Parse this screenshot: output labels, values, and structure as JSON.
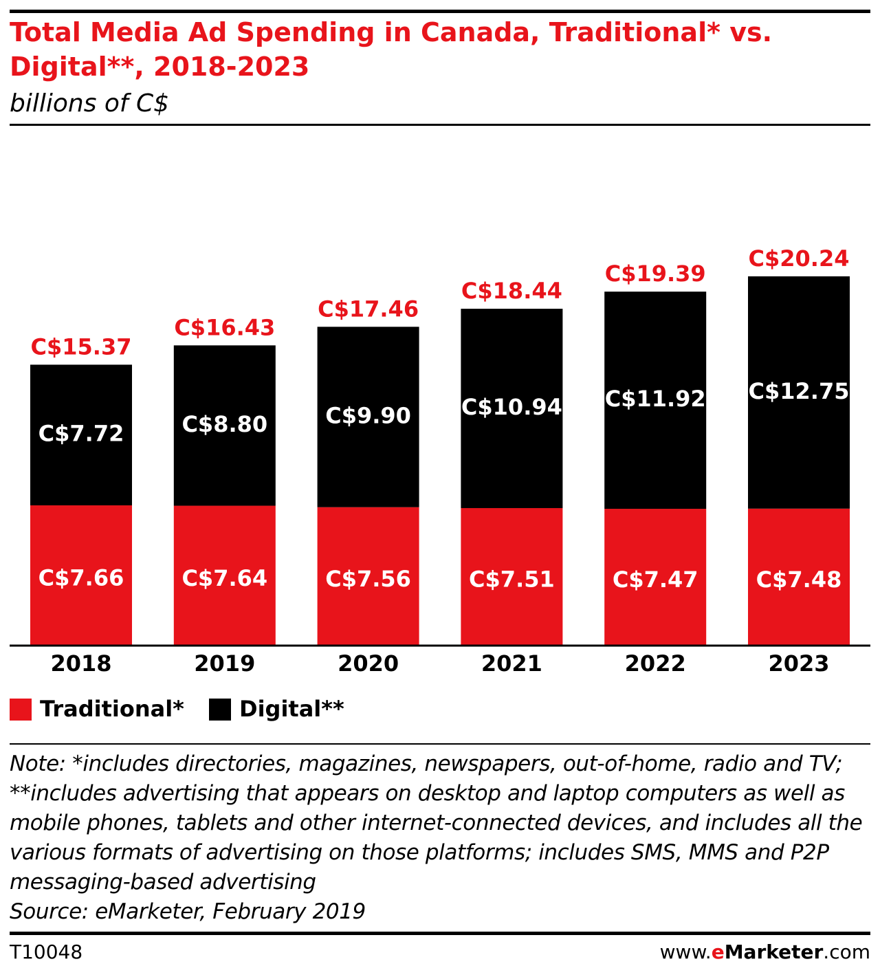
{
  "header": {
    "title": "Total Media Ad Spending in Canada, Traditional* vs. Digital**, 2018-2023",
    "subtitle": "billions of C$"
  },
  "colors": {
    "traditional": "#e8141b",
    "digital": "#000000",
    "title": "#e8141b",
    "total_label": "#e8141b"
  },
  "chart_data": {
    "type": "bar",
    "stacked": true,
    "categories": [
      "2018",
      "2019",
      "2020",
      "2021",
      "2022",
      "2023"
    ],
    "series": [
      {
        "name": "Traditional*",
        "values": [
          7.66,
          7.64,
          7.56,
          7.51,
          7.47,
          7.48
        ],
        "labels": [
          "C$7.66",
          "C$7.64",
          "C$7.56",
          "C$7.51",
          "C$7.47",
          "C$7.48"
        ]
      },
      {
        "name": "Digital**",
        "values": [
          7.72,
          8.8,
          9.9,
          10.94,
          11.92,
          12.75
        ],
        "labels": [
          "C$7.72",
          "C$8.80",
          "C$9.90",
          "C$10.94",
          "C$11.92",
          "C$12.75"
        ]
      }
    ],
    "totals": [
      15.37,
      16.43,
      17.46,
      18.44,
      19.39,
      20.24
    ],
    "total_labels": [
      "C$15.37",
      "C$16.43",
      "C$17.46",
      "C$18.44",
      "C$19.39",
      "C$20.24"
    ],
    "title": "Total Media Ad Spending in Canada, Traditional* vs. Digital**, 2018-2023",
    "ylabel": "billions of C$",
    "xlabel": "",
    "grid": false,
    "legend": "bottom-left"
  },
  "legend": {
    "traditional_label": "Traditional*",
    "digital_label": "Digital**"
  },
  "notes": {
    "note": "Note: *includes directories, magazines, newspapers, out-of-home, radio and TV; **includes advertising that appears on desktop and laptop computers as well as mobile phones, tablets and other internet-connected devices, and includes all the various formats of advertising on those platforms; includes SMS, MMS and P2P messaging-based advertising",
    "source": "Source: eMarketer, February 2019"
  },
  "footer": {
    "chart_id": "T10048",
    "site_prefix": "www.",
    "site_brand_e": "e",
    "site_brand_rest": "Marketer",
    "site_suffix": ".com"
  }
}
